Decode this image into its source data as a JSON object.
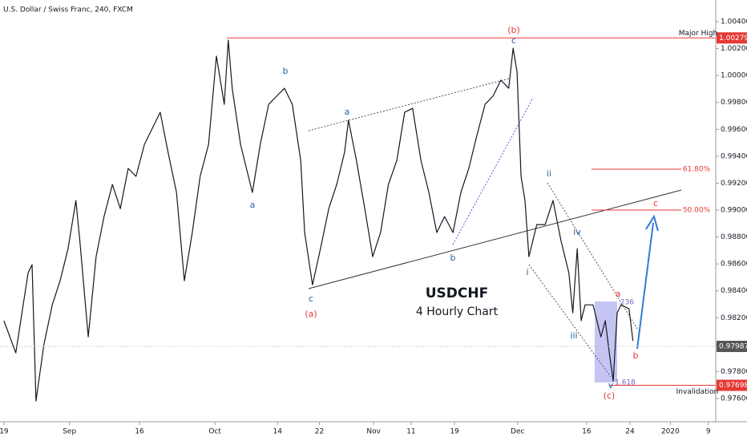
{
  "chart_data": {
    "type": "line",
    "title": "U.S. Dollar / Swiss Franc, 240, FXCM",
    "heading": "USDCHF",
    "subheading": "4 Hourly Chart",
    "color": "#131722",
    "x": [
      0,
      2.4,
      4.9,
      5.7,
      6.5,
      8.1,
      9.8,
      11.4,
      13,
      14.6,
      15.4,
      17.1,
      18.7,
      20.3,
      22,
      23.6,
      25.2,
      26.8,
      28.5,
      30.1,
      31.7,
      33.3,
      35,
      36.6,
      38.2,
      39.8,
      41.5,
      43.1,
      44.7,
      45.5,
      46.3,
      48,
      50.4,
      52,
      53.7,
      55.3,
      56.9,
      58.5,
      60.2,
      61,
      62.6,
      64.2,
      65.9,
      67.5,
      69.1,
      69.9,
      71.5,
      73.2,
      74.8,
      76.4,
      78,
      79.7,
      81.3,
      82.9,
      84.6,
      86.2,
      87.8,
      89.4,
      91.1,
      92.7,
      94.3,
      95.9,
      97.6,
      99.2,
      100.8,
      102.4,
      103.3,
      104.1,
      104.9,
      105.7,
      106.5,
      108.1,
      109.8,
      111.4,
      113,
      114.6,
      115.4,
      116.3,
      117.1,
      117.9,
      119.5,
      121.1,
      122,
      122.8,
      123.6,
      124.4,
      125.2,
      126.8,
      127.6
    ],
    "values": [
      0.98178,
      0.97939,
      0.98535,
      0.98594,
      0.97581,
      0.97998,
      0.98296,
      0.98475,
      0.98713,
      0.99071,
      0.98773,
      0.98058,
      0.98654,
      0.98952,
      0.9919,
      0.99011,
      0.99309,
      0.9925,
      0.99488,
      0.99607,
      0.99727,
      0.99429,
      0.99131,
      0.98475,
      0.98833,
      0.9925,
      0.99488,
      1.00144,
      0.99786,
      1.00263,
      0.99905,
      0.99488,
      0.99131,
      0.99488,
      0.99786,
      0.99846,
      0.99905,
      0.99786,
      0.99369,
      0.98833,
      0.98445,
      0.98713,
      0.99011,
      0.9919,
      0.99429,
      0.99667,
      0.99369,
      0.99011,
      0.98654,
      0.98833,
      0.9919,
      0.99369,
      0.99727,
      0.99756,
      0.99369,
      0.99131,
      0.98833,
      0.98952,
      0.98833,
      0.99131,
      0.99309,
      0.99548,
      0.99786,
      0.99846,
      0.99965,
      0.99905,
      1.00203,
      1.00025,
      0.9925,
      0.99071,
      0.98654,
      0.98892,
      0.98892,
      0.99071,
      0.98773,
      0.98535,
      0.98237,
      0.98713,
      0.98178,
      0.98296,
      0.98296,
      0.98058,
      0.98178,
      0.97939,
      0.9773,
      0.98237,
      0.98296,
      0.98266,
      0.98028
    ],
    "xlim": [
      -0.8,
      144.4
    ],
    "xticks": [
      {
        "value": 0,
        "label": "19"
      },
      {
        "value": 13.3,
        "label": "Sep"
      },
      {
        "value": 27.5,
        "label": "16"
      },
      {
        "value": 42.8,
        "label": "Oct"
      },
      {
        "value": 55.5,
        "label": "14"
      },
      {
        "value": 64,
        "label": "22"
      },
      {
        "value": 75,
        "label": "Nov"
      },
      {
        "value": 82.6,
        "label": "11"
      },
      {
        "value": 91.4,
        "label": "19"
      },
      {
        "value": 104.2,
        "label": "Dec"
      },
      {
        "value": 118.2,
        "label": "16"
      },
      {
        "value": 127,
        "label": "24"
      },
      {
        "value": 135.2,
        "label": "2020"
      },
      {
        "value": 142.9,
        "label": "9"
      }
    ],
    "ylim": [
      0.976,
      1.004
    ],
    "yticks": [
      {
        "value": 1.004,
        "label": "1.00400"
      },
      {
        "value": 1.002,
        "label": "1.00200"
      },
      {
        "value": 1.0,
        "label": "1.00000"
      },
      {
        "value": 0.998,
        "label": "0.99800"
      },
      {
        "value": 0.996,
        "label": "0.99600"
      },
      {
        "value": 0.994,
        "label": "0.99400"
      },
      {
        "value": 0.992,
        "label": "0.99200"
      },
      {
        "value": 0.99,
        "label": "0.99000"
      },
      {
        "value": 0.988,
        "label": "0.98800"
      },
      {
        "value": 0.986,
        "label": "0.98600"
      },
      {
        "value": 0.984,
        "label": "0.98400"
      },
      {
        "value": 0.982,
        "label": "0.98200"
      },
      {
        "value": 0.98,
        "label": "0.98000"
      },
      {
        "value": 0.978,
        "label": "0.97800"
      },
      {
        "value": 0.976,
        "label": "0.97600"
      }
    ],
    "grid": false,
    "levels": [
      {
        "value": 1.00279,
        "text": "Major High",
        "color": "#e53935"
      },
      {
        "value": 0.97987,
        "color": "#555555"
      },
      {
        "value": 0.97698,
        "text": "Invalidation",
        "color": "#e53935"
      }
    ],
    "annotations": [
      {
        "text": "(b)",
        "color": "#e53935"
      },
      {
        "text": "c",
        "color": "#2962a8"
      },
      {
        "text": "b",
        "color": "#2962a8"
      },
      {
        "text": "a",
        "color": "#2962a8"
      },
      {
        "text": "a",
        "color": "#2962a8"
      },
      {
        "text": "c",
        "color": "#2962a8"
      },
      {
        "text": "(a)",
        "color": "#e53935"
      },
      {
        "text": "b",
        "color": "#2962a8"
      },
      {
        "text": "ii",
        "color": "#2962a8"
      },
      {
        "text": "iv",
        "color": "#2962a8"
      },
      {
        "text": "i",
        "color": "#2962a8"
      },
      {
        "text": "iii",
        "color": "#2962a8"
      },
      {
        "text": "a",
        "color": "#e53935"
      },
      {
        "text": "b",
        "color": "#e53935"
      },
      {
        "text": "v",
        "color": "#2962a8"
      },
      {
        "text": "(c)",
        "color": "#e53935"
      },
      {
        "text": "c",
        "color": "#e53935"
      },
      {
        "text": "61.80%",
        "color": "#e53935"
      },
      {
        "text": "50.00%",
        "color": "#e53935"
      },
      {
        "text": "1.618",
        "color": "#6a6ac8"
      },
      {
        "text": ".236",
        "color": "#6a6ac8"
      }
    ]
  }
}
